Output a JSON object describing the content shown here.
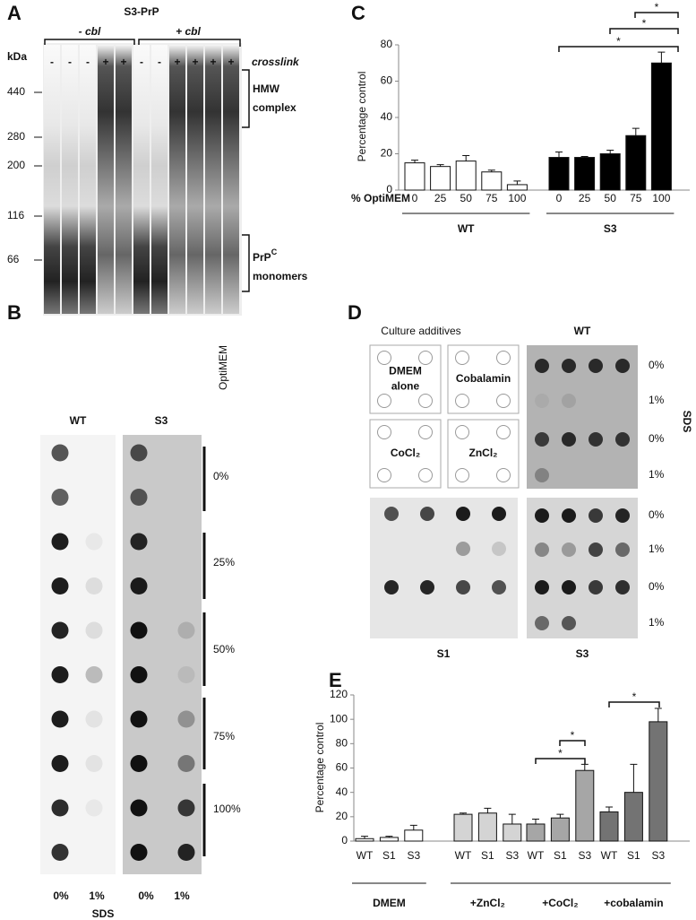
{
  "panel_a": {
    "panel": "A",
    "title": "S3-PrP",
    "groups": [
      "- cbl",
      "+ cbl"
    ],
    "unit": "kDa",
    "lanes": [
      "-",
      "-",
      "-",
      "+",
      "+",
      "-",
      "-",
      "+",
      "+",
      "+",
      "+"
    ],
    "lane_label": "crosslink",
    "markers": [
      "440",
      "280",
      "200",
      "116",
      "66"
    ],
    "annotations": [
      {
        "text": "HMW",
        "sup": "",
        "line2": "complex"
      },
      {
        "text": "PrP",
        "sup": "C",
        "line2": "monomers"
      }
    ]
  },
  "panel_b": {
    "panel": "B",
    "columns": [
      "WT",
      "S3"
    ],
    "axis_label": "OptiMEM",
    "levels": [
      "0%",
      "25%",
      "50%",
      "75%",
      "100%"
    ],
    "sds_levels": [
      "0%",
      "1%",
      "0%",
      "1%"
    ],
    "sds_label": "SDS"
  },
  "panel_d": {
    "panel": "D",
    "title": "Culture additives",
    "additives": [
      [
        "DMEM",
        "alone"
      ],
      [
        "Cobalamin"
      ],
      [
        "CoCl₂"
      ],
      [
        "ZnCl₂"
      ]
    ],
    "blots": [
      "WT",
      "S1",
      "S3"
    ],
    "sds_levels": [
      "0%",
      "1%",
      "0%",
      "1%"
    ],
    "sds_label": "SDS"
  },
  "chart_data": [
    {
      "type": "bar",
      "panel": "C",
      "ylabel": "Percentage control",
      "xlabel": "% OptiMEM",
      "categories": [
        "0",
        "25",
        "50",
        "75",
        "100"
      ],
      "series": [
        {
          "name": "WT",
          "color": "#ffffff",
          "values": [
            15,
            13,
            16,
            10,
            3
          ],
          "errors": [
            1.5,
            1,
            3,
            1,
            2
          ]
        },
        {
          "name": "S3",
          "color": "#000000",
          "values": [
            18,
            18,
            20,
            30,
            70
          ],
          "errors": [
            3,
            0.5,
            2,
            4,
            6
          ]
        }
      ],
      "ylim": [
        0,
        80
      ],
      "yticks": [
        0,
        20,
        40,
        60,
        80
      ],
      "significance": [
        "*",
        "*",
        "*"
      ]
    },
    {
      "type": "bar",
      "panel": "E",
      "ylabel": "Percentage control",
      "categories": [
        "WT",
        "S1",
        "S3"
      ],
      "series": [
        {
          "name": "DMEM",
          "color": "#ffffff",
          "values": [
            2,
            3,
            9
          ],
          "errors": [
            2,
            1,
            4
          ]
        },
        {
          "name": "+ZnCl₂",
          "color": "#d4d4d4",
          "values": [
            22,
            23,
            14
          ],
          "errors": [
            1,
            4,
            8
          ]
        },
        {
          "name": "+CoCl₂",
          "color": "#a6a6a6",
          "values": [
            14,
            19,
            58
          ],
          "errors": [
            4,
            3,
            5
          ]
        },
        {
          "name": "+cobalamin",
          "color": "#737373",
          "values": [
            24,
            40,
            98
          ],
          "errors": [
            4,
            23,
            11
          ]
        }
      ],
      "ylim": [
        0,
        120
      ],
      "yticks": [
        0,
        20,
        40,
        60,
        80,
        100,
        120
      ],
      "significance": [
        "*",
        "*",
        "*"
      ]
    }
  ]
}
